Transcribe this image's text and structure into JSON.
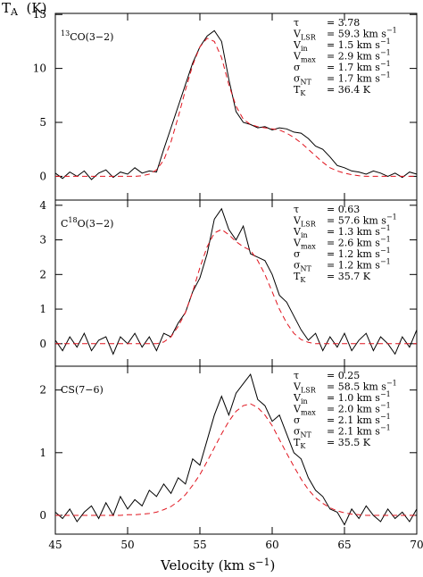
{
  "ylabel": [
    {
      "t": "T"
    },
    {
      "t": "A",
      "style": "sub"
    },
    {
      "t": "  (K)"
    }
  ],
  "xlabel": [
    {
      "t": "Velocity (km s"
    },
    {
      "t": "−1",
      "style": "sup"
    },
    {
      "t": ")"
    }
  ],
  "chart_data": [
    {
      "type": "line",
      "xlim": [
        45,
        70
      ],
      "xticks": [
        45,
        50,
        55,
        60,
        65,
        70
      ],
      "ylim": [
        -2.2,
        15.1
      ],
      "yticks": [
        0,
        5,
        10,
        15
      ],
      "label": [
        {
          "t": "13",
          "style": "sup"
        },
        {
          "t": "CO(3−2)"
        }
      ],
      "params": [
        {
          "symbol": [
            {
              "t": "τ"
            }
          ],
          "value": [
            {
              "t": "= 3.78"
            }
          ]
        },
        {
          "symbol": [
            {
              "t": "V"
            },
            {
              "t": "LSR",
              "style": "sub"
            }
          ],
          "value": [
            {
              "t": "= 59.3 km s"
            },
            {
              "t": "−1",
              "style": "sup"
            }
          ]
        },
        {
          "symbol": [
            {
              "t": "V"
            },
            {
              "t": "in",
              "style": "sub"
            }
          ],
          "value": [
            {
              "t": "= 1.5 km s"
            },
            {
              "t": "−1",
              "style": "sup"
            }
          ]
        },
        {
          "symbol": [
            {
              "t": "V"
            },
            {
              "t": "max",
              "style": "sub"
            }
          ],
          "value": [
            {
              "t": "= 2.9 km s"
            },
            {
              "t": "−1",
              "style": "sup"
            }
          ]
        },
        {
          "symbol": [
            {
              "t": "σ"
            }
          ],
          "value": [
            {
              "t": "= 1.7 km s"
            },
            {
              "t": "−1",
              "style": "sup"
            }
          ]
        },
        {
          "symbol": [
            {
              "t": "σ"
            },
            {
              "t": "NT",
              "style": "sub"
            }
          ],
          "value": [
            {
              "t": "= 1.7 km s"
            },
            {
              "t": "−1",
              "style": "sup"
            }
          ]
        },
        {
          "symbol": [
            {
              "t": "T"
            },
            {
              "t": "K",
              "style": "sub"
            }
          ],
          "value": [
            {
              "t": "= 36.4 K"
            }
          ]
        }
      ],
      "x": [
        45,
        45.5,
        46,
        46.5,
        47,
        47.5,
        48,
        48.5,
        49,
        49.5,
        50,
        50.5,
        51,
        51.5,
        52,
        52.5,
        53,
        53.5,
        54,
        54.5,
        55,
        55.5,
        56,
        56.5,
        57,
        57.5,
        58,
        58.5,
        59,
        59.5,
        60,
        60.5,
        61,
        61.5,
        62,
        62.5,
        63,
        63.5,
        64,
        64.5,
        65,
        65.5,
        66,
        66.5,
        67,
        67.5,
        68,
        68.5,
        69,
        69.5,
        70
      ],
      "series": [
        {
          "color": "#000000",
          "dash": false,
          "values": [
            0.3,
            -0.2,
            0.4,
            0.0,
            0.5,
            -0.3,
            0.3,
            0.6,
            -0.1,
            0.4,
            0.2,
            0.8,
            0.3,
            0.5,
            0.4,
            2.5,
            4.5,
            6.5,
            8.5,
            10.5,
            12.0,
            13.0,
            13.5,
            12.5,
            9.0,
            6.0,
            5.0,
            4.8,
            4.5,
            4.6,
            4.3,
            4.5,
            4.4,
            4.1,
            4.0,
            3.5,
            2.8,
            2.5,
            1.8,
            1.0,
            0.8,
            0.5,
            0.4,
            0.2,
            0.5,
            0.3,
            0.0,
            0.3,
            -0.1,
            0.4,
            0.2
          ]
        },
        {
          "color": "#e0141e",
          "dash": true,
          "values": [
            0,
            0,
            0,
            0,
            0,
            0,
            0,
            0,
            0,
            0,
            0,
            0,
            0.05,
            0.2,
            0.6,
            1.5,
            3.2,
            5.5,
            8.0,
            10.3,
            12.0,
            12.8,
            12.5,
            11.0,
            8.5,
            6.5,
            5.3,
            4.8,
            4.6,
            4.5,
            4.4,
            4.3,
            4.0,
            3.6,
            3.1,
            2.5,
            1.9,
            1.3,
            0.8,
            0.5,
            0.3,
            0.15,
            0.05,
            0,
            0,
            0,
            0,
            0,
            0,
            0,
            0
          ]
        }
      ]
    },
    {
      "type": "line",
      "xlim": [
        45,
        70
      ],
      "xticks": [
        45,
        50,
        55,
        60,
        65,
        70
      ],
      "ylim": [
        -0.65,
        4.15
      ],
      "yticks": [
        0,
        1,
        2,
        3,
        4
      ],
      "label": [
        {
          "t": "C"
        },
        {
          "t": "18",
          "style": "sup"
        },
        {
          "t": "O(3−2)"
        }
      ],
      "params": [
        {
          "symbol": [
            {
              "t": "τ"
            }
          ],
          "value": [
            {
              "t": "= 0.63"
            }
          ]
        },
        {
          "symbol": [
            {
              "t": "V"
            },
            {
              "t": "LSR",
              "style": "sub"
            }
          ],
          "value": [
            {
              "t": "= 57.6 km s"
            },
            {
              "t": "−1",
              "style": "sup"
            }
          ]
        },
        {
          "symbol": [
            {
              "t": "V"
            },
            {
              "t": "in",
              "style": "sub"
            }
          ],
          "value": [
            {
              "t": "= 1.3 km s"
            },
            {
              "t": "−1",
              "style": "sup"
            }
          ]
        },
        {
          "symbol": [
            {
              "t": "V"
            },
            {
              "t": "max",
              "style": "sub"
            }
          ],
          "value": [
            {
              "t": "= 2.6 km s"
            },
            {
              "t": "−1",
              "style": "sup"
            }
          ]
        },
        {
          "symbol": [
            {
              "t": "σ"
            }
          ],
          "value": [
            {
              "t": "= 1.2 km s"
            },
            {
              "t": "−1",
              "style": "sup"
            }
          ]
        },
        {
          "symbol": [
            {
              "t": "σ"
            },
            {
              "t": "NT",
              "style": "sub"
            }
          ],
          "value": [
            {
              "t": "= 1.2 km s"
            },
            {
              "t": "−1",
              "style": "sup"
            }
          ]
        },
        {
          "symbol": [
            {
              "t": "T"
            },
            {
              "t": "K",
              "style": "sub"
            }
          ],
          "value": [
            {
              "t": "= 35.7 K"
            }
          ]
        }
      ],
      "x": [
        45,
        45.5,
        46,
        46.5,
        47,
        47.5,
        48,
        48.5,
        49,
        49.5,
        50,
        50.5,
        51,
        51.5,
        52,
        52.5,
        53,
        53.5,
        54,
        54.5,
        55,
        55.5,
        56,
        56.5,
        57,
        57.5,
        58,
        58.5,
        59,
        59.5,
        60,
        60.5,
        61,
        61.5,
        62,
        62.5,
        63,
        63.5,
        64,
        64.5,
        65,
        65.5,
        66,
        66.5,
        67,
        67.5,
        68,
        68.5,
        69,
        69.5,
        70
      ],
      "series": [
        {
          "color": "#000000",
          "dash": false,
          "values": [
            0.1,
            -0.2,
            0.2,
            -0.1,
            0.3,
            -0.2,
            0.1,
            0.2,
            -0.3,
            0.2,
            0.0,
            0.3,
            -0.1,
            0.2,
            -0.2,
            0.3,
            0.2,
            0.6,
            0.9,
            1.5,
            1.9,
            2.6,
            3.6,
            3.9,
            3.3,
            3.0,
            3.4,
            2.6,
            2.5,
            2.4,
            2.0,
            1.4,
            1.2,
            0.8,
            0.4,
            0.1,
            0.3,
            -0.2,
            0.2,
            -0.1,
            0.3,
            -0.2,
            0.1,
            0.3,
            -0.2,
            0.2,
            0.0,
            -0.3,
            0.2,
            -0.1,
            0.4
          ]
        },
        {
          "color": "#e0141e",
          "dash": true,
          "values": [
            0,
            0,
            0,
            0,
            0,
            0,
            0,
            0,
            0,
            0,
            0,
            0,
            0,
            0,
            0,
            0.05,
            0.2,
            0.5,
            0.9,
            1.5,
            2.2,
            2.8,
            3.2,
            3.3,
            3.15,
            2.95,
            2.8,
            2.7,
            2.4,
            2.0,
            1.5,
            1.0,
            0.6,
            0.3,
            0.12,
            0.04,
            0,
            0,
            0,
            0,
            0,
            0,
            0,
            0,
            0,
            0,
            0,
            0,
            0,
            0,
            0
          ]
        }
      ]
    },
    {
      "type": "line",
      "xlim": [
        45,
        70
      ],
      "xticks": [
        45,
        50,
        55,
        60,
        65,
        70
      ],
      "ylim": [
        -0.3,
        2.38
      ],
      "yticks": [
        0,
        1,
        2
      ],
      "label": [
        {
          "t": "CS(7−6)"
        }
      ],
      "params": [
        {
          "symbol": [
            {
              "t": "τ"
            }
          ],
          "value": [
            {
              "t": "= 0.25"
            }
          ]
        },
        {
          "symbol": [
            {
              "t": "V"
            },
            {
              "t": "LSR",
              "style": "sub"
            }
          ],
          "value": [
            {
              "t": "= 58.5 km s"
            },
            {
              "t": "−1",
              "style": "sup"
            }
          ]
        },
        {
          "symbol": [
            {
              "t": "V"
            },
            {
              "t": "in",
              "style": "sub"
            }
          ],
          "value": [
            {
              "t": "= 1.0 km s"
            },
            {
              "t": "−1",
              "style": "sup"
            }
          ]
        },
        {
          "symbol": [
            {
              "t": "V"
            },
            {
              "t": "max",
              "style": "sub"
            }
          ],
          "value": [
            {
              "t": "= 2.0 km s"
            },
            {
              "t": "−1",
              "style": "sup"
            }
          ]
        },
        {
          "symbol": [
            {
              "t": "σ"
            }
          ],
          "value": [
            {
              "t": "= 2.1 km s"
            },
            {
              "t": "−1",
              "style": "sup"
            }
          ]
        },
        {
          "symbol": [
            {
              "t": "σ"
            },
            {
              "t": "NT",
              "style": "sub"
            }
          ],
          "value": [
            {
              "t": "= 2.1 km s"
            },
            {
              "t": "−1",
              "style": "sup"
            }
          ]
        },
        {
          "symbol": [
            {
              "t": "T"
            },
            {
              "t": "K",
              "style": "sub"
            }
          ],
          "value": [
            {
              "t": "= 35.5 K"
            }
          ]
        }
      ],
      "x": [
        45,
        45.5,
        46,
        46.5,
        47,
        47.5,
        48,
        48.5,
        49,
        49.5,
        50,
        50.5,
        51,
        51.5,
        52,
        52.5,
        53,
        53.5,
        54,
        54.5,
        55,
        55.5,
        56,
        56.5,
        57,
        57.5,
        58,
        58.5,
        59,
        59.5,
        60,
        60.5,
        61,
        61.5,
        62,
        62.5,
        63,
        63.5,
        64,
        64.5,
        65,
        65.5,
        66,
        66.5,
        67,
        67.5,
        68,
        68.5,
        69,
        69.5,
        70
      ],
      "series": [
        {
          "color": "#000000",
          "dash": false,
          "values": [
            0.05,
            -0.05,
            0.1,
            -0.1,
            0.05,
            0.15,
            -0.05,
            0.2,
            0.0,
            0.3,
            0.1,
            0.25,
            0.15,
            0.4,
            0.3,
            0.5,
            0.35,
            0.6,
            0.5,
            0.9,
            0.8,
            1.2,
            1.6,
            1.9,
            1.6,
            1.95,
            2.1,
            2.25,
            1.85,
            1.75,
            1.5,
            1.6,
            1.3,
            1.0,
            0.9,
            0.6,
            0.4,
            0.3,
            0.1,
            0.05,
            -0.15,
            0.1,
            -0.05,
            0.15,
            0.0,
            -0.1,
            0.1,
            -0.05,
            0.05,
            -0.1,
            0.1
          ]
        },
        {
          "color": "#e0141e",
          "dash": true,
          "values": [
            0,
            0,
            0,
            0,
            0,
            0,
            0,
            0,
            0,
            0,
            0.01,
            0.01,
            0.02,
            0.03,
            0.05,
            0.09,
            0.14,
            0.22,
            0.33,
            0.48,
            0.65,
            0.86,
            1.08,
            1.3,
            1.5,
            1.66,
            1.75,
            1.78,
            1.72,
            1.6,
            1.43,
            1.21,
            0.99,
            0.78,
            0.58,
            0.41,
            0.28,
            0.19,
            0.12,
            0.07,
            0.04,
            0.02,
            0.01,
            0,
            0,
            0,
            0,
            0,
            0,
            0,
            0
          ]
        }
      ]
    }
  ]
}
